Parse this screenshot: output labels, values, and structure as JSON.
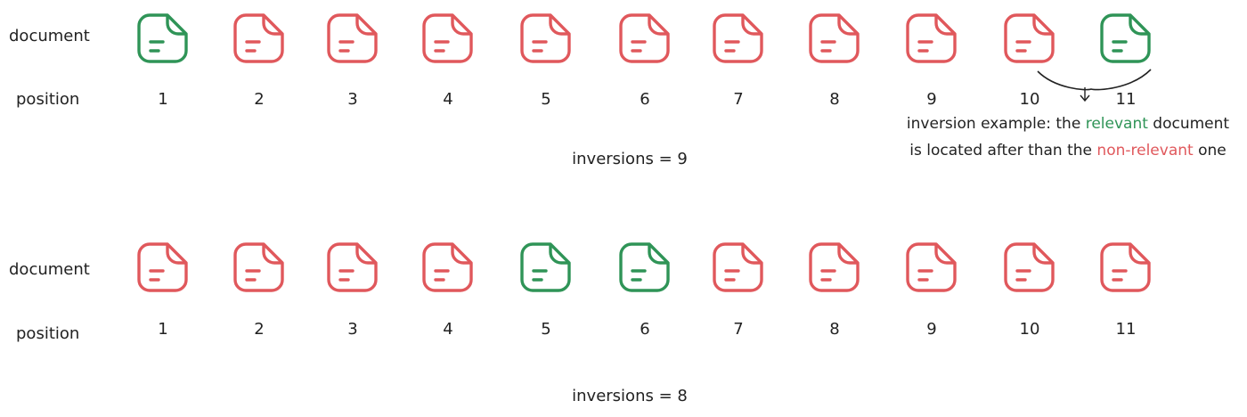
{
  "colors": {
    "relevant": "#2f9457",
    "non_relevant": "#e0585c"
  },
  "icon": "document-icon",
  "rows": [
    {
      "document_label": "document",
      "position_label": "position",
      "docs": [
        "relevant",
        "non-relevant",
        "non-relevant",
        "non-relevant",
        "non-relevant",
        "non-relevant",
        "non-relevant",
        "non-relevant",
        "non-relevant",
        "non-relevant",
        "relevant"
      ],
      "positions": [
        "1",
        "2",
        "3",
        "4",
        "5",
        "6",
        "7",
        "8",
        "9",
        "10",
        "11"
      ],
      "inversions_text": "inversions = 9"
    },
    {
      "document_label": "document",
      "position_label": "position",
      "docs": [
        "non-relevant",
        "non-relevant",
        "non-relevant",
        "non-relevant",
        "relevant",
        "relevant",
        "non-relevant",
        "non-relevant",
        "non-relevant",
        "non-relevant",
        "non-relevant"
      ],
      "positions": [
        "1",
        "2",
        "3",
        "4",
        "5",
        "6",
        "7",
        "8",
        "9",
        "10",
        "11"
      ],
      "inversions_text": "inversions = 8"
    }
  ],
  "annotation": {
    "line1_prefix": "inversion example: the ",
    "line1_highlight": "relevant",
    "line1_suffix": " document",
    "line2_prefix": "is located after than the ",
    "line2_highlight": "non-relevant",
    "line2_suffix": " one"
  }
}
